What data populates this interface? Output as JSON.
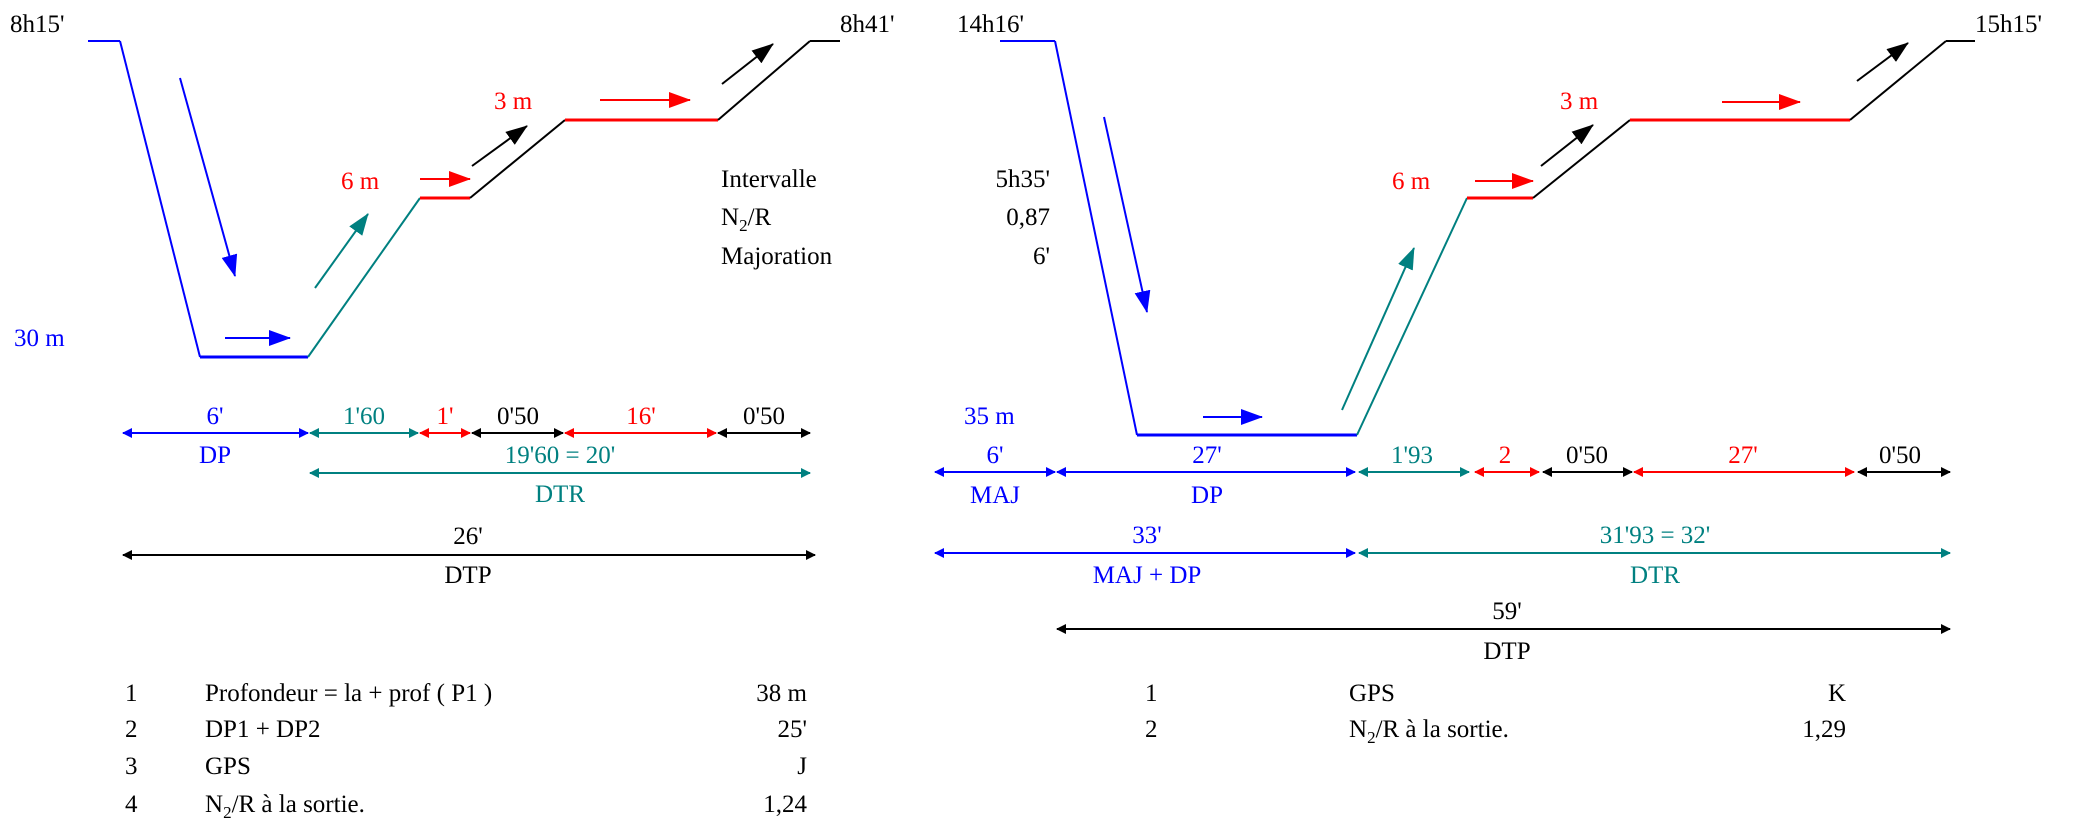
{
  "colors": {
    "blue": "#0000ff",
    "teal": "#008080",
    "red": "#ff0000",
    "black": "#000000"
  },
  "dive1": {
    "start_time": "8h15'",
    "end_time": "8h41'",
    "depth_label": "30 m",
    "stop6_label": "6 m",
    "stop3_label": "3 m",
    "interval_rows": [
      {
        "label": "Intervalle",
        "value": "5h35'"
      },
      {
        "label": "N",
        "label_sub": "2",
        "label_suffix": "/R",
        "value": "0,87"
      },
      {
        "label": "Majoration",
        "value": "6'"
      }
    ],
    "timeline": {
      "dp_time": "6'",
      "dp_label": "DP",
      "ascent1": "1'60",
      "stop6": "1'",
      "ascent2": "0'50",
      "stop3": "16'",
      "ascent3": "0'50",
      "dtr_total": "19'60 = 20'",
      "dtr_label": "DTR",
      "dtp_total": "26'",
      "dtp_label": "DTP"
    },
    "notes": [
      {
        "num": "1",
        "text": "Profondeur = la + prof ( P1 )",
        "value": "38 m"
      },
      {
        "num": "2",
        "text": "DP1 + DP2",
        "value": "25'"
      },
      {
        "num": "3",
        "text": "GPS",
        "value": "J"
      },
      {
        "num": "4",
        "text": "N",
        "text_sub": "2",
        "text_suffix": "/R à la sortie.",
        "value": "1,24"
      }
    ]
  },
  "dive2": {
    "start_time": "14h16'",
    "end_time": "15h15'",
    "depth_label": "35 m",
    "stop6_label": "6 m",
    "stop3_label": "3 m",
    "timeline": {
      "maj_time": "6'",
      "maj_label": "MAJ",
      "dp_time": "27'",
      "dp_label": "DP",
      "ascent1": "1'93",
      "stop6": "2",
      "ascent2": "0'50",
      "stop3": "27'",
      "ascent3": "0'50",
      "majdp_total": "33'",
      "majdp_label": "MAJ + DP",
      "dtr_total": "31'93 = 32'",
      "dtr_label": "DTR",
      "dtp_total": "59'",
      "dtp_label": "DTP"
    },
    "notes": [
      {
        "num": "1",
        "text": "GPS",
        "value": "K"
      },
      {
        "num": "2",
        "text": "N",
        "text_sub": "2",
        "text_suffix": "/R à la sortie.",
        "value": "1,29"
      }
    ]
  }
}
